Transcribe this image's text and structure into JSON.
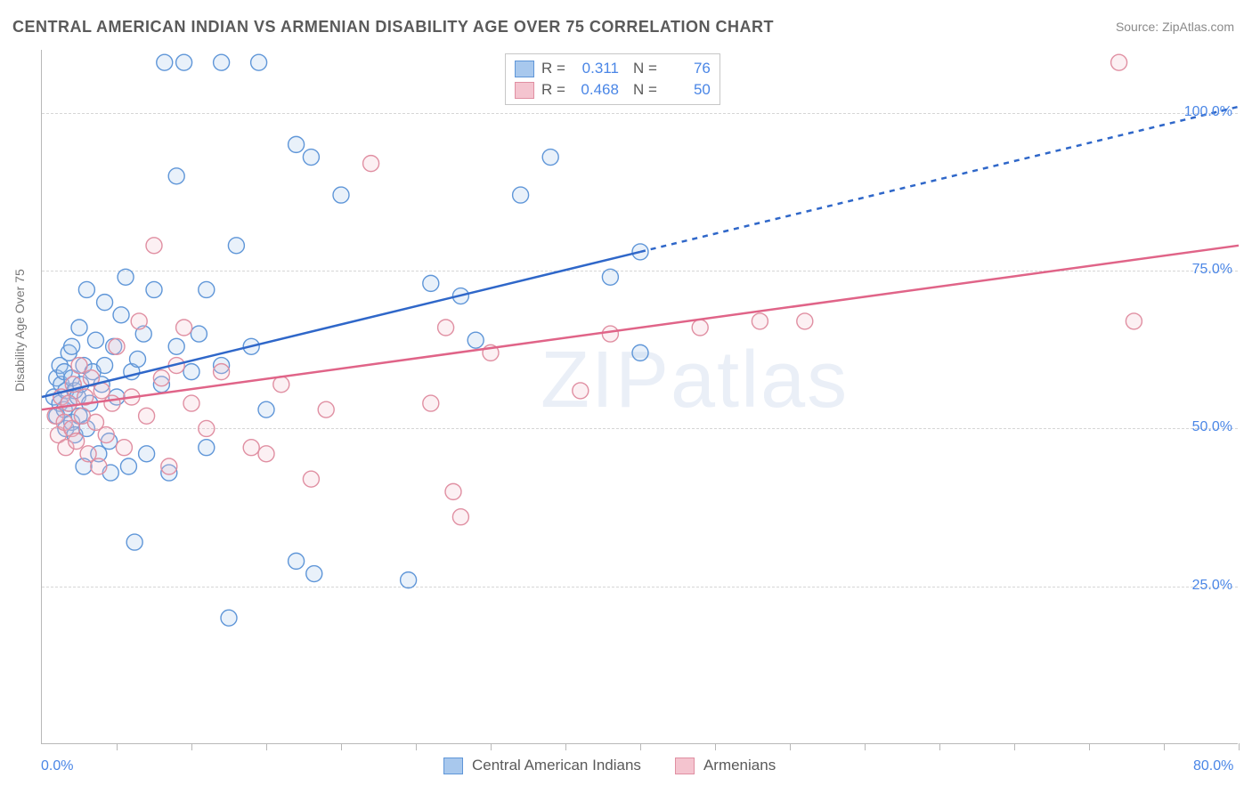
{
  "title": "CENTRAL AMERICAN INDIAN VS ARMENIAN DISABILITY AGE OVER 75 CORRELATION CHART",
  "source_label": "Source: ZipAtlas.com",
  "watermark_text": "ZIPatlas",
  "y_axis_label": "Disability Age Over 75",
  "chart": {
    "type": "scatter",
    "background_color": "#ffffff",
    "grid_color": "#d6d6d6",
    "axis_color": "#b8b8b8",
    "tick_label_color": "#4a86e6",
    "label_fontsize": 14,
    "tick_fontsize": 16,
    "title_fontsize": 18,
    "title_color": "#5a5a5a",
    "marker_radius": 9,
    "marker_stroke_width": 1.4,
    "marker_fill_opacity": 0.25,
    "trend_line_width": 2.5,
    "trend_dash": "6,6",
    "xlim": [
      0,
      80
    ],
    "ylim": [
      0,
      110
    ],
    "x_domain_visible_max": 40,
    "xticks": [
      0,
      5,
      10,
      15,
      20,
      25,
      30,
      35,
      40,
      45,
      50,
      55,
      60,
      65,
      70,
      75,
      80
    ],
    "x_tick_labels": {
      "0": "0.0%",
      "80": "80.0%"
    },
    "y_gridlines": [
      25,
      50,
      75,
      100
    ],
    "y_tick_labels": {
      "25": "25.0%",
      "50": "50.0%",
      "75": "75.0%",
      "100": "100.0%"
    }
  },
  "series": [
    {
      "id": "central_american_indians",
      "label": "Central American Indians",
      "fill_color": "#a8c8ed",
      "stroke_color": "#5f96d8",
      "line_color": "#2f67c9",
      "R": "0.311",
      "N": "76",
      "trend": {
        "x1": 0,
        "y1": 55,
        "x2_solid": 40,
        "y2_solid": 78,
        "x2_dash": 80,
        "y2_dash": 101
      },
      "points": [
        [
          0.8,
          55
        ],
        [
          1.0,
          58
        ],
        [
          1.0,
          52
        ],
        [
          1.2,
          60
        ],
        [
          1.2,
          54
        ],
        [
          1.3,
          57
        ],
        [
          1.5,
          53
        ],
        [
          1.5,
          59
        ],
        [
          1.6,
          56
        ],
        [
          1.6,
          50
        ],
        [
          1.8,
          62
        ],
        [
          1.8,
          54
        ],
        [
          2.0,
          51
        ],
        [
          2.0,
          58
        ],
        [
          2.0,
          63
        ],
        [
          2.2,
          56
        ],
        [
          2.2,
          49
        ],
        [
          2.4,
          55
        ],
        [
          2.5,
          66
        ],
        [
          2.5,
          52
        ],
        [
          2.6,
          57
        ],
        [
          2.8,
          60
        ],
        [
          2.8,
          44
        ],
        [
          3.0,
          50
        ],
        [
          3.0,
          72
        ],
        [
          3.2,
          54
        ],
        [
          3.4,
          59
        ],
        [
          3.6,
          64
        ],
        [
          3.8,
          46
        ],
        [
          4.0,
          57
        ],
        [
          4.2,
          60
        ],
        [
          4.2,
          70
        ],
        [
          4.5,
          48
        ],
        [
          4.6,
          43
        ],
        [
          4.8,
          63
        ],
        [
          5.0,
          55
        ],
        [
          5.3,
          68
        ],
        [
          5.6,
          74
        ],
        [
          5.8,
          44
        ],
        [
          6.0,
          59
        ],
        [
          6.2,
          32
        ],
        [
          6.4,
          61
        ],
        [
          6.8,
          65
        ],
        [
          7.0,
          46
        ],
        [
          7.5,
          72
        ],
        [
          8.0,
          57
        ],
        [
          8.2,
          108
        ],
        [
          8.5,
          43
        ],
        [
          9.0,
          90
        ],
        [
          9.0,
          63
        ],
        [
          9.5,
          108
        ],
        [
          10.0,
          59
        ],
        [
          10.5,
          65
        ],
        [
          11.0,
          47
        ],
        [
          11.0,
          72
        ],
        [
          12.0,
          108
        ],
        [
          12.0,
          60
        ],
        [
          12.5,
          20
        ],
        [
          13.0,
          79
        ],
        [
          14.0,
          63
        ],
        [
          14.5,
          108
        ],
        [
          15.0,
          53
        ],
        [
          17.0,
          95
        ],
        [
          17.0,
          29
        ],
        [
          18.0,
          93
        ],
        [
          18.2,
          27
        ],
        [
          20.0,
          87
        ],
        [
          24.5,
          26
        ],
        [
          26.0,
          73
        ],
        [
          28.0,
          71
        ],
        [
          29.0,
          64
        ],
        [
          32.0,
          87
        ],
        [
          34.0,
          93
        ],
        [
          38.0,
          74
        ],
        [
          40.0,
          78
        ],
        [
          40.0,
          62
        ]
      ]
    },
    {
      "id": "armenians",
      "label": "Armenians",
      "fill_color": "#f4c4cf",
      "stroke_color": "#e08fa2",
      "line_color": "#e06488",
      "R": "0.468",
      "N": "50",
      "trend": {
        "x1": 0,
        "y1": 53,
        "x2_solid": 80,
        "y2_solid": 79,
        "x2_dash": 80,
        "y2_dash": 79
      },
      "points": [
        [
          0.9,
          52
        ],
        [
          1.1,
          49
        ],
        [
          1.3,
          55
        ],
        [
          1.5,
          51
        ],
        [
          1.6,
          47
        ],
        [
          1.8,
          54
        ],
        [
          2.0,
          50
        ],
        [
          2.1,
          57
        ],
        [
          2.3,
          48
        ],
        [
          2.5,
          60
        ],
        [
          2.7,
          52
        ],
        [
          2.9,
          55
        ],
        [
          3.1,
          46
        ],
        [
          3.3,
          58
        ],
        [
          3.6,
          51
        ],
        [
          3.8,
          44
        ],
        [
          4.0,
          56
        ],
        [
          4.3,
          49
        ],
        [
          4.7,
          54
        ],
        [
          5.0,
          63
        ],
        [
          5.5,
          47
        ],
        [
          6.0,
          55
        ],
        [
          6.5,
          67
        ],
        [
          7.0,
          52
        ],
        [
          7.5,
          79
        ],
        [
          8.0,
          58
        ],
        [
          8.5,
          44
        ],
        [
          9.0,
          60
        ],
        [
          9.5,
          66
        ],
        [
          10.0,
          54
        ],
        [
          11.0,
          50
        ],
        [
          12.0,
          59
        ],
        [
          14.0,
          47
        ],
        [
          15.0,
          46
        ],
        [
          16.0,
          57
        ],
        [
          18.0,
          42
        ],
        [
          19.0,
          53
        ],
        [
          22.0,
          92
        ],
        [
          26.0,
          54
        ],
        [
          27.0,
          66
        ],
        [
          27.5,
          40
        ],
        [
          28.0,
          36
        ],
        [
          30.0,
          62
        ],
        [
          36.0,
          56
        ],
        [
          38.0,
          65
        ],
        [
          44.0,
          66
        ],
        [
          48.0,
          67
        ],
        [
          72.0,
          108
        ],
        [
          73.0,
          67
        ],
        [
          51.0,
          67
        ]
      ]
    }
  ],
  "legend_top": {
    "R_label": "R =",
    "N_label": "N ="
  },
  "legend_bottom_labels": [
    "Central American Indians",
    "Armenians"
  ]
}
